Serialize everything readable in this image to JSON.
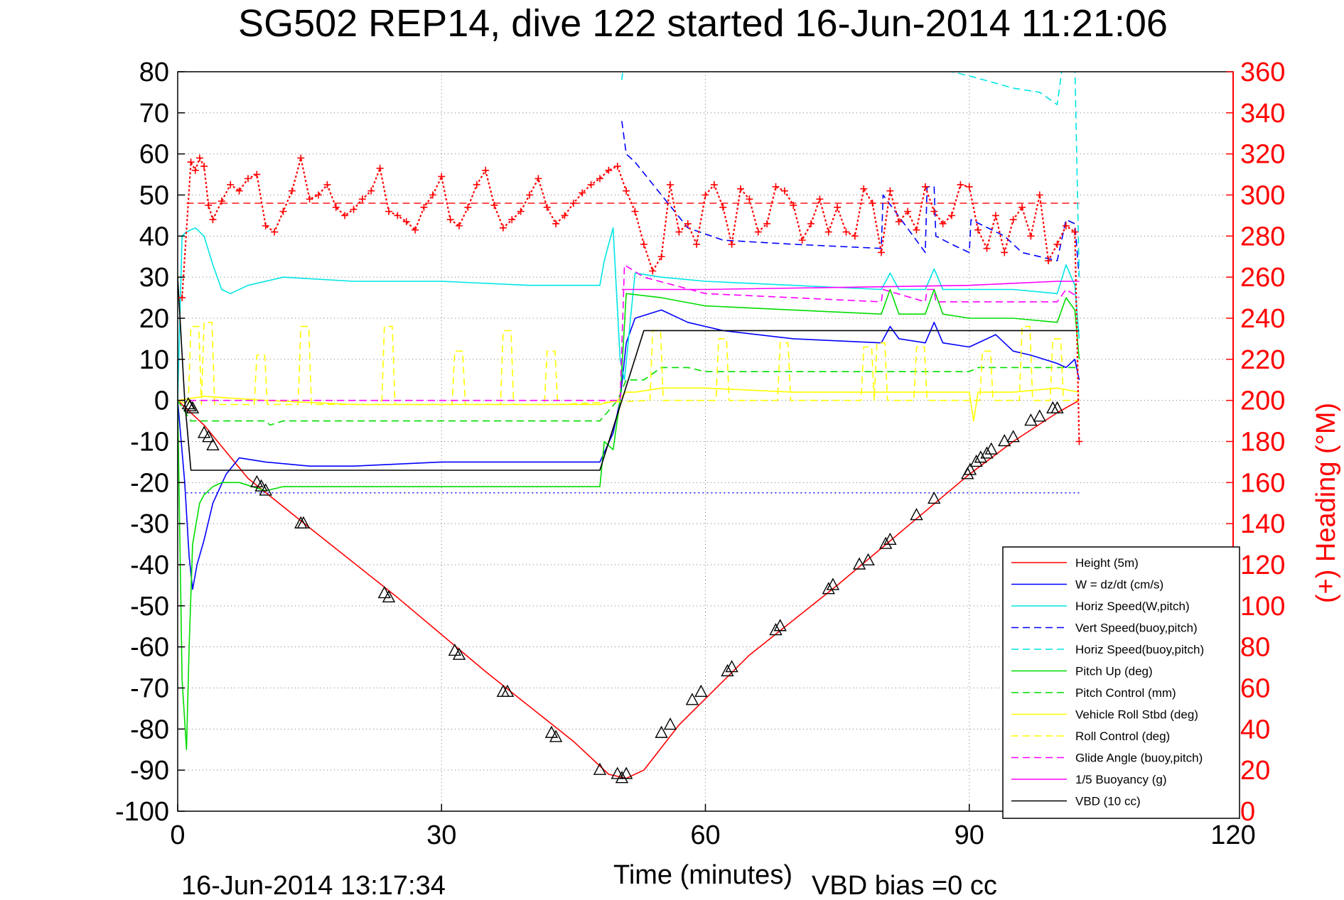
{
  "chart_data": {
    "type": "line",
    "title": "SG502 REP14, dive 122 started 16-Jun-2014 11:21:06",
    "xlabel": "Time (minutes)",
    "ylabel_left": "",
    "ylabel_right": "(+) Heading (°M)",
    "footer_timestamp": "16-Jun-2014 13:17:34",
    "footer_note": "VBD bias =0 cc",
    "xlim": [
      0,
      120
    ],
    "ylim_left": [
      -100,
      80
    ],
    "ylim_right": [
      0,
      360
    ],
    "x_ticks": [
      "0",
      "30",
      "60",
      "90",
      "120"
    ],
    "y_ticks_left": [
      "80",
      "70",
      "60",
      "50",
      "40",
      "30",
      "20",
      "10",
      "0",
      "-10",
      "-20",
      "-30",
      "-40",
      "-50",
      "-60",
      "-70",
      "-80",
      "-90",
      "-100"
    ],
    "y_ticks_right": [
      "360",
      "340",
      "320",
      "300",
      "280",
      "260",
      "240",
      "220",
      "200",
      "180",
      "160",
      "140",
      "120",
      "100",
      "80",
      "60",
      "40",
      "20",
      "0"
    ],
    "grid": "dotted",
    "legend_position": "bottom-right",
    "colors": {
      "height": "#ff0000",
      "w": "#0000ff",
      "horiz_speed": "#00e5e5",
      "vert_speed_buoy": "#0000ff",
      "horiz_speed_buoy": "#00e5e5",
      "pitch_up": "#00dd00",
      "pitch_control": "#00dd00",
      "roll": "#ffff00",
      "roll_control": "#ffff00",
      "glide_angle": "#ff00ff",
      "buoyancy": "#ff00ff",
      "vbd": "#000000",
      "heading": "#ff0000",
      "right_axis": "#ff0000"
    },
    "series": [
      {
        "name": "Height (5m)",
        "key": "height",
        "style": "solid",
        "x": [
          0,
          3,
          8,
          15,
          25,
          35,
          45,
          49,
          51,
          53,
          57,
          65,
          75,
          85,
          90,
          95,
          100,
          102.5
        ],
        "y": [
          0,
          -6,
          -19,
          -31,
          -48,
          -66,
          -83,
          -91,
          -92,
          -90,
          -79,
          -62,
          -45,
          -27,
          -18,
          -10,
          -3,
          0
        ]
      },
      {
        "name": "W = dz/dt (cm/s)",
        "key": "w",
        "style": "solid",
        "x": [
          0,
          0.8,
          1.3,
          1.7,
          2.2,
          3,
          4,
          5.5,
          7,
          10,
          15,
          20,
          30,
          40,
          48,
          49.5,
          50.3,
          51,
          52,
          55,
          58,
          62,
          70,
          80,
          81,
          82,
          85,
          86,
          87,
          90,
          93,
          95,
          97,
          100,
          101,
          102,
          102.5
        ],
        "y": [
          0,
          -20,
          -38,
          -46,
          -40,
          -34,
          -25,
          -18,
          -14,
          -15,
          -16,
          -16,
          -15,
          -15,
          -15,
          -8,
          0,
          14,
          20,
          22,
          19,
          17,
          15,
          14,
          18,
          15,
          14,
          19,
          14,
          13,
          16,
          12,
          11,
          9,
          8,
          10,
          5
        ]
      },
      {
        "name": "Horiz Speed(W,pitch)",
        "key": "horiz_speed",
        "style": "solid",
        "x": [
          0,
          0.5,
          1,
          2,
          3,
          4,
          5,
          6,
          8,
          12,
          20,
          30,
          40,
          48,
          48.5,
          49.5,
          50.3,
          50.8,
          52,
          55,
          60,
          70,
          80,
          81,
          82,
          85,
          86,
          87,
          90,
          95,
          100,
          101,
          102,
          102.5
        ],
        "y": [
          0,
          40,
          41,
          42,
          40,
          33,
          27,
          26,
          28,
          30,
          29,
          29,
          28,
          28,
          34,
          42,
          10,
          5,
          31,
          30,
          29,
          28,
          27,
          31,
          27,
          27,
          32,
          27,
          27,
          27,
          26,
          33,
          28,
          15
        ]
      },
      {
        "name": "Vert Speed(buoy,pitch)",
        "key": "vert_speed_buoy",
        "style": "dashed",
        "x": [
          50.5,
          51,
          52,
          55,
          58,
          62,
          70,
          80,
          80.2,
          85,
          85.2,
          86,
          86.2,
          88,
          90,
          90.2,
          94,
          96,
          98,
          100,
          101,
          102,
          102.5
        ],
        "y": [
          68,
          60,
          58,
          50,
          42,
          39,
          38,
          37,
          50,
          36,
          52,
          52,
          40,
          38,
          36,
          44,
          40,
          36,
          35,
          34,
          44,
          43,
          30
        ]
      },
      {
        "name": "Horiz Speed(buoy,pitch)",
        "key": "horiz_speed_buoy",
        "style": "dashed",
        "x": [
          50.5,
          50.7,
          55,
          60,
          70,
          85,
          88,
          90,
          95,
          98,
          100,
          100.5,
          101,
          102,
          102.5
        ],
        "y": [
          78,
          82,
          82,
          82,
          82,
          82,
          80,
          79,
          76,
          75,
          72,
          80,
          82,
          82,
          30
        ]
      },
      {
        "name": "Pitch Up (deg)",
        "key": "pitch_up",
        "style": "solid",
        "x": [
          0,
          0.5,
          1,
          1.3,
          1.7,
          2.5,
          3,
          4,
          5,
          7,
          10,
          12,
          20,
          30,
          40,
          48,
          48.5,
          49.5,
          50.3,
          51,
          55,
          60,
          70,
          80,
          81,
          82,
          85,
          86,
          87,
          90,
          95,
          100,
          101,
          102,
          102.5
        ],
        "y": [
          0,
          -68,
          -85,
          -60,
          -35,
          -25,
          -23,
          -21,
          -20,
          -20,
          -22,
          -21,
          -21,
          -21,
          -21,
          -21,
          -10,
          -12,
          0,
          26,
          25,
          23,
          22,
          21,
          27,
          21,
          21,
          27,
          21,
          20,
          20,
          19,
          25,
          22,
          10
        ]
      },
      {
        "name": "Pitch Control (mm)",
        "key": "pitch_control",
        "style": "dashed",
        "x": [
          0,
          1.5,
          5,
          10,
          10.5,
          12,
          20,
          30,
          40,
          48,
          50,
          51,
          53,
          55,
          58,
          60,
          90,
          91,
          100,
          102.5
        ],
        "y": [
          0,
          -5,
          -5,
          -5,
          -6,
          -5,
          -5,
          -5,
          -5,
          -5,
          0,
          5,
          5,
          8,
          8,
          7,
          7,
          8,
          8,
          8
        ]
      },
      {
        "name": "Vehicle Roll Stbd (deg)",
        "key": "roll",
        "style": "solid",
        "x": [
          0,
          3,
          10,
          20,
          30,
          40,
          48,
          50,
          51,
          52,
          55,
          60,
          70,
          80,
          90,
          90.5,
          91,
          95,
          100,
          102.5
        ],
        "y": [
          0,
          1,
          0,
          -1,
          -1,
          -1,
          -1,
          0,
          2,
          2,
          3,
          3,
          2,
          2,
          2,
          -5,
          2,
          2,
          3,
          2
        ]
      },
      {
        "name": "Roll Control (deg)",
        "key": "roll_control",
        "style": "dashed",
        "pulses": [
          [
            1.5,
            18,
            "neg"
          ],
          [
            3,
            19,
            "neg"
          ],
          [
            9,
            11,
            "neg"
          ],
          [
            14,
            18,
            "neg"
          ],
          [
            23.5,
            18,
            "neg"
          ],
          [
            31.5,
            12,
            "neg"
          ],
          [
            37,
            17,
            "neg"
          ],
          [
            42,
            12,
            "neg"
          ],
          [
            54,
            17,
            "pos"
          ],
          [
            61.5,
            15,
            "pos"
          ],
          [
            68.5,
            14,
            "pos"
          ],
          [
            78,
            13,
            "pos"
          ],
          [
            79.5,
            14,
            "pos"
          ],
          [
            84,
            13,
            "pos"
          ],
          [
            91.5,
            12,
            "pos"
          ],
          [
            96,
            18,
            "pos"
          ],
          [
            99.5,
            15,
            "pos"
          ]
        ]
      },
      {
        "name": "Glide Angle (buoy,pitch)",
        "key": "glide_angle",
        "style": "dashed",
        "x": [
          0,
          48,
          50.3,
          50.8,
          53,
          60,
          70,
          80,
          80.2,
          85,
          85.2,
          86,
          86.2,
          90,
          100,
          101,
          102.5
        ],
        "y": [
          0,
          0,
          0,
          33,
          30,
          26,
          25,
          24,
          27,
          24,
          27,
          27,
          24,
          24,
          24,
          27,
          25
        ]
      },
      {
        "name": "1/5 Buoyancy (g)",
        "key": "buoyancy",
        "style": "solid",
        "x": [
          50.5,
          60,
          90,
          100,
          102.5
        ],
        "y": [
          27,
          27,
          28,
          29,
          29
        ]
      },
      {
        "name": "VBD (10 cc)",
        "key": "vbd",
        "style": "solid",
        "x": [
          0,
          0.8,
          1.5,
          48,
          50.5,
          53,
          102.5
        ],
        "y": [
          30,
          0,
          -17,
          -17,
          0,
          17,
          17
        ]
      }
    ],
    "reference_lines": [
      {
        "key": "heading_target",
        "axis": "right",
        "value": 296,
        "color": "#ff0000",
        "style": "dashed",
        "x": [
          1,
          102.5
        ]
      },
      {
        "key": "blue_dotted",
        "axis": "left",
        "value": -22.5,
        "color": "#0000ff",
        "style": "dotted",
        "x": [
          1,
          102.5
        ]
      }
    ],
    "heading": {
      "name": "(+) Heading (°M)",
      "marker": "+",
      "axis": "right",
      "x": [
        0.5,
        1.5,
        2,
        2.5,
        3,
        3.5,
        4,
        5,
        6,
        7,
        8,
        9,
        10,
        11,
        12,
        13,
        14,
        15,
        16,
        17,
        18,
        19,
        20,
        21,
        22,
        23,
        24,
        25,
        26,
        27,
        28,
        29,
        30,
        31,
        32,
        33,
        34,
        35,
        36,
        37,
        38,
        39,
        40,
        41,
        42,
        43,
        44,
        45,
        46,
        47,
        48,
        49,
        50,
        51,
        52,
        53,
        54,
        55,
        56,
        57,
        58,
        59,
        60,
        61,
        62,
        63,
        64,
        65,
        66,
        67,
        68,
        69,
        70,
        71,
        72,
        73,
        74,
        75,
        76,
        77,
        78,
        79,
        80,
        81,
        82,
        83,
        84,
        85,
        86,
        87,
        88,
        89,
        90,
        91,
        92,
        93,
        94,
        95,
        96,
        97,
        98,
        99,
        100,
        101,
        102,
        102.5
      ],
      "y": [
        250,
        316,
        312,
        318,
        314,
        295,
        288,
        297,
        305,
        302,
        308,
        310,
        285,
        282,
        292,
        302,
        318,
        298,
        300,
        305,
        294,
        290,
        293,
        298,
        302,
        313,
        292,
        290,
        287,
        283,
        294,
        300,
        309,
        288,
        285,
        294,
        305,
        312,
        295,
        284,
        288,
        292,
        300,
        308,
        294,
        286,
        290,
        296,
        301,
        305,
        308,
        312,
        314,
        302,
        292,
        276,
        263,
        270,
        305,
        282,
        286,
        276,
        300,
        305,
        294,
        276,
        303,
        298,
        282,
        286,
        304,
        302,
        295,
        278,
        286,
        298,
        282,
        294,
        282,
        280,
        303,
        296,
        272,
        302,
        287,
        292,
        283,
        304,
        292,
        286,
        290,
        305,
        304,
        283,
        274,
        290,
        272,
        288,
        294,
        280,
        300,
        268,
        276,
        285,
        282,
        180
      ]
    },
    "triangles": {
      "x": [
        1.2,
        1.4,
        1.7,
        3,
        3.5,
        4,
        9,
        9.5,
        10,
        14,
        14.3,
        23.5,
        24,
        31.5,
        32,
        37,
        37.5,
        42.5,
        43,
        48,
        50,
        50.5,
        51,
        55,
        56,
        58.5,
        59.5,
        62.5,
        63,
        68,
        68.5,
        74,
        74.5,
        77.5,
        78.5,
        80.5,
        81,
        84,
        86,
        89.8,
        90.1,
        90.8,
        91.3,
        92,
        92.5,
        94,
        95,
        97,
        98,
        99.5,
        100
      ],
      "y": [
        -1,
        -1.5,
        -2,
        -8,
        -9,
        -11,
        -20,
        -21,
        -22,
        -30,
        -30,
        -47,
        -48,
        -61,
        -62,
        -71,
        -71,
        -81,
        -82,
        -90,
        -91,
        -92,
        -91,
        -81,
        -79,
        -73,
        -71,
        -66,
        -65,
        -56,
        -55,
        -46,
        -45,
        -40,
        -39,
        -35,
        -34,
        -28,
        -24,
        -18,
        -17,
        -15,
        -14,
        -13,
        -12,
        -10,
        -9,
        -5,
        -4,
        -2,
        -2
      ]
    }
  }
}
